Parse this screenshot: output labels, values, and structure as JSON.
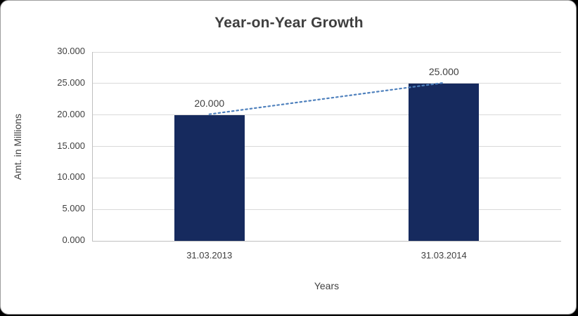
{
  "chart_data": {
    "type": "bar",
    "title": "Year-on-Year Growth",
    "xlabel": "Years",
    "ylabel": "Amt. in Millions",
    "categories": [
      "31.03.2013",
      "31.03.2014"
    ],
    "values": [
      20,
      25
    ],
    "data_labels": [
      "20.000",
      "25.000"
    ],
    "ylim": [
      0,
      30
    ],
    "ytick_values": [
      0,
      5,
      10,
      15,
      20,
      25,
      30
    ],
    "ytick_labels": [
      "0.000",
      "5.000",
      "10.000",
      "15.000",
      "20.000",
      "25.000",
      "30.000"
    ],
    "grid": true,
    "legend": "none",
    "trendline": {
      "style": "dotted",
      "points": [
        20,
        25
      ]
    },
    "colors": {
      "bar": "#162a5e",
      "grid": "#d9d9d9",
      "axis": "#bfbfbf",
      "text": "#404040",
      "trend": "#4f81bd",
      "background": "#ffffff"
    }
  }
}
